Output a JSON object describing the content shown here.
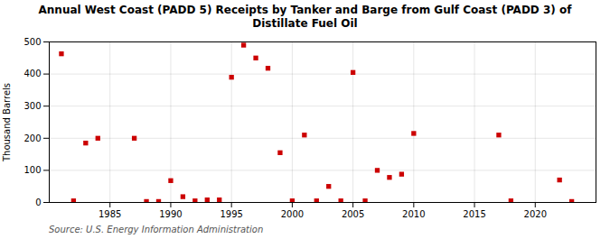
{
  "chart_data": {
    "type": "scatter",
    "title": "Annual West Coast (PADD 5) Receipts by Tanker and Barge from Gulf Coast (PADD 3) of\nDistillate Fuel Oil",
    "ylabel": "Thousand Barrels",
    "annotations": [
      "Source: U.S. Energy Information Administration"
    ],
    "x": [
      1981,
      1982,
      1983,
      1984,
      1987,
      1988,
      1989,
      1990,
      1991,
      1992,
      1993,
      1994,
      1995,
      1996,
      1997,
      1998,
      1999,
      2000,
      2001,
      2002,
      2003,
      2004,
      2005,
      2006,
      2007,
      2008,
      2009,
      2010,
      2017,
      2018,
      2022,
      2023
    ],
    "values": [
      463,
      5,
      185,
      200,
      200,
      3,
      3,
      68,
      18,
      5,
      8,
      8,
      390,
      490,
      450,
      418,
      155,
      5,
      210,
      5,
      50,
      5,
      405,
      5,
      100,
      78,
      88,
      215,
      210,
      5,
      70,
      3
    ],
    "color": "#cc0000",
    "marker": "square",
    "xlim": [
      1980,
      2025
    ],
    "ylim": [
      0,
      500
    ],
    "xticks": [
      1985,
      1990,
      1995,
      2000,
      2005,
      2010,
      2015,
      2020
    ],
    "yticks": [
      0,
      100,
      200,
      300,
      400,
      500
    ],
    "grid": true
  }
}
